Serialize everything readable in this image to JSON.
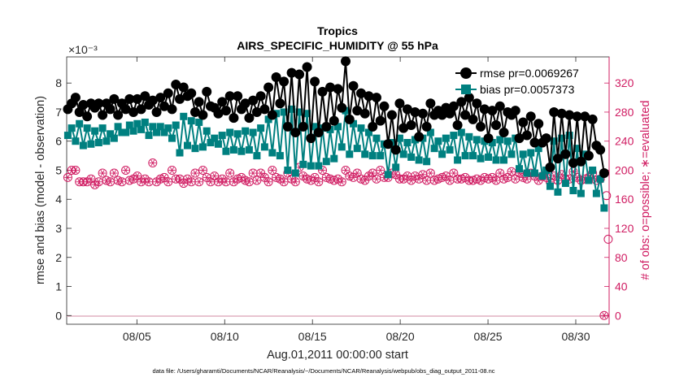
{
  "chart_data": {
    "type": "line",
    "title": "Tropics",
    "subtitle": "AIRS_SPECIFIC_HUMIDITY @ 55 hPa",
    "xlabel": "Aug.01,2011 00:00:00 start",
    "ylabel": "rmse and bias (model - observation)",
    "y2label": "# of obs: o=possible; ∗=evaluated",
    "y_exponent": "×10⁻³",
    "xlim": [
      1,
      31.9
    ],
    "ylim": [
      -0.3,
      8.9
    ],
    "y2lim": [
      -12,
      356
    ],
    "x_ticks": [
      5,
      10,
      15,
      20,
      25,
      30
    ],
    "x_tick_labels": [
      "08/05",
      "08/10",
      "08/15",
      "08/20",
      "08/25",
      "08/30"
    ],
    "y_ticks": [
      0,
      1,
      2,
      3,
      4,
      5,
      6,
      7,
      8
    ],
    "y2_ticks": [
      0,
      40,
      80,
      120,
      160,
      200,
      240,
      280,
      320
    ],
    "footnote": "data file: /Users/gharamti/Documents/NCAR/Reanalysis/~/Documents/NCAR/Reanalysis/webpub/obs_diag_output_2011-08.nc",
    "series": [
      {
        "name": "rmse pr=0.0069267",
        "axis": "left",
        "color": "#000000",
        "marker": "circle",
        "values": [
          7.1,
          7.3,
          7.5,
          7.0,
          7.25,
          6.85,
          7.3,
          7.15,
          7.3,
          6.9,
          7.3,
          7.1,
          7.45,
          6.9,
          7.3,
          7.1,
          7.45,
          7.0,
          7.45,
          7.1,
          7.55,
          7.25,
          7.4,
          7.0,
          7.5,
          7.2,
          7.65,
          7.1,
          7.95,
          7.45,
          7.85,
          7.55,
          7.65,
          7.0,
          7.35,
          6.9,
          7.7,
          7.2,
          7.15,
          6.95,
          7.35,
          7.05,
          7.55,
          6.8,
          7.55,
          7.1,
          7.3,
          6.8,
          7.4,
          7.0,
          7.55,
          7.1,
          7.85,
          6.9,
          8.2,
          7.3,
          8.05,
          6.5,
          8.35,
          6.3,
          8.3,
          6.5,
          8.55,
          6.1,
          8.05,
          6.3,
          7.7,
          6.5,
          7.85,
          6.7,
          7.8,
          7.15,
          8.75,
          6.75,
          7.9,
          7.05,
          7.65,
          6.95,
          7.55,
          6.5,
          7.5,
          6.7,
          7.2,
          5.9,
          6.9,
          5.7,
          7.3,
          6.45,
          7.1,
          6.55,
          7.0,
          6.15,
          6.95,
          6.5,
          7.3,
          6.9,
          7.05,
          6.9,
          7.15,
          6.95,
          7.2,
          6.55,
          7.35,
          6.9,
          7.5,
          6.75,
          7.3,
          6.5,
          7.1,
          6.1,
          7.05,
          6.55,
          7.2,
          6.3,
          7.0,
          6.9,
          7.05,
          6.1,
          6.65,
          6.2,
          6.85,
          5.95,
          6.6,
          5.95,
          6.1,
          5.1,
          7.0,
          5.4,
          6.95,
          5.55,
          6.9,
          5.25,
          6.85,
          5.3,
          6.85,
          5.5,
          6.75,
          5.85,
          5.7,
          4.9
        ]
      },
      {
        "name": "bias pr=0.0057373",
        "axis": "left",
        "color": "#008080",
        "marker": "square",
        "values": [
          6.2,
          6.45,
          6.0,
          6.6,
          5.85,
          6.45,
          5.9,
          6.35,
          5.95,
          6.45,
          6.0,
          6.25,
          6.1,
          6.5,
          6.3,
          6.3,
          6.55,
          6.35,
          6.6,
          6.4,
          6.65,
          6.2,
          6.5,
          6.3,
          6.5,
          6.3,
          6.45,
          6.1,
          6.55,
          5.6,
          6.85,
          5.85,
          6.7,
          5.75,
          6.65,
          5.8,
          6.35,
          5.95,
          6.1,
          5.9,
          6.2,
          5.65,
          6.3,
          5.7,
          6.25,
          5.65,
          6.35,
          5.7,
          6.3,
          5.5,
          6.45,
          5.8,
          6.75,
          5.6,
          6.95,
          5.5,
          7.0,
          5.0,
          7.1,
          4.9,
          7.0,
          5.2,
          6.95,
          5.15,
          6.5,
          5.15,
          6.45,
          5.3,
          6.4,
          5.4,
          6.5,
          5.8,
          7.05,
          5.55,
          6.6,
          5.75,
          6.45,
          5.55,
          6.3,
          5.5,
          6.1,
          5.5,
          5.9,
          4.85,
          5.95,
          5.1,
          6.1,
          5.55,
          5.95,
          5.45,
          6.05,
          5.35,
          6.1,
          5.3,
          6.3,
          5.75,
          6.0,
          5.55,
          6.1,
          5.7,
          6.2,
          5.35,
          6.3,
          5.5,
          6.15,
          5.5,
          6.05,
          5.4,
          6.0,
          5.45,
          5.95,
          5.35,
          6.05,
          5.35,
          6.0,
          5.55,
          6.1,
          5.05,
          5.55,
          4.9,
          5.6,
          4.9,
          5.75,
          4.8,
          5.0,
          4.45,
          6.0,
          4.25,
          6.1,
          4.55,
          6.2,
          4.3,
          5.75,
          4.2,
          5.55,
          4.65,
          5.0,
          4.2,
          4.7,
          3.7
        ]
      },
      {
        "name": "obs possible",
        "axis": "right",
        "color": "#d01c62",
        "marker": "circle-open",
        "values": [
          190,
          200,
          200,
          184,
          184,
          184,
          188,
          180,
          184,
          196,
          186,
          184,
          196,
          186,
          184,
          200,
          186,
          188,
          192,
          184,
          188,
          184,
          210,
          184,
          188,
          190,
          184,
          200,
          188,
          188,
          182,
          188,
          184,
          196,
          184,
          200,
          190,
          184,
          192,
          184,
          188,
          184,
          196,
          184,
          188,
          190,
          186,
          184,
          196,
          186,
          196,
          190,
          184,
          200,
          190,
          188,
          184,
          196,
          188,
          184,
          204,
          192,
          188,
          186,
          190,
          184,
          200,
          190,
          188,
          186,
          188,
          184,
          200,
          192,
          190,
          196,
          188,
          186,
          192,
          196,
          188,
          200,
          190,
          190,
          196,
          194,
          188,
          188,
          192,
          186,
          192,
          188,
          194,
          186,
          196,
          186,
          188,
          190,
          192,
          186,
          196,
          188,
          188,
          190,
          186,
          186,
          188,
          186,
          190,
          188,
          190,
          186,
          196,
          188,
          190,
          198,
          188,
          196,
          190,
          188,
          196,
          192,
          186,
          192,
          190,
          184,
          192,
          186,
          194,
          188,
          188,
          198,
          190,
          186,
          188,
          190,
          196,
          186,
          188,
          0
        ],
        "note": "last value plotted at 0 after a drop through 165 and 105"
      },
      {
        "name": "obs evaluated",
        "axis": "right",
        "color": "#d01c62",
        "marker": "asterisk",
        "values": [
          190,
          200,
          200,
          184,
          184,
          184,
          188,
          180,
          184,
          196,
          186,
          184,
          196,
          186,
          184,
          200,
          186,
          188,
          192,
          184,
          188,
          184,
          210,
          184,
          188,
          190,
          184,
          200,
          188,
          188,
          182,
          188,
          184,
          196,
          184,
          200,
          190,
          184,
          192,
          184,
          188,
          184,
          196,
          184,
          188,
          190,
          186,
          184,
          196,
          186,
          196,
          190,
          184,
          200,
          190,
          188,
          184,
          196,
          188,
          184,
          204,
          192,
          188,
          186,
          190,
          184,
          200,
          190,
          188,
          186,
          188,
          184,
          200,
          192,
          190,
          196,
          188,
          186,
          192,
          196,
          188,
          200,
          190,
          190,
          196,
          194,
          188,
          188,
          192,
          186,
          192,
          188,
          194,
          186,
          196,
          186,
          188,
          190,
          192,
          186,
          196,
          188,
          188,
          190,
          186,
          186,
          188,
          186,
          190,
          188,
          190,
          186,
          196,
          188,
          190,
          198,
          188,
          196,
          190,
          188,
          196,
          192,
          186,
          192,
          190,
          184,
          192,
          186,
          194,
          188,
          188,
          198,
          190,
          186,
          188,
          190,
          196,
          186,
          188,
          0
        ]
      }
    ],
    "extra_tail": {
      "x": [
        31.75,
        31.85
      ],
      "y2": [
        165,
        105
      ]
    },
    "legend_position": "top-right"
  },
  "colors": {
    "axis": "#262626",
    "right_axis": "#d01c62",
    "rmse": "#000000",
    "bias": "#008080",
    "obs": "#d01c62"
  }
}
